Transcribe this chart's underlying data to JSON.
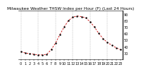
{
  "title": "Milwaukee Weather THSW Index per Hour (F) (Last 24 Hours)",
  "hours": [
    0,
    1,
    2,
    3,
    4,
    5,
    6,
    7,
    8,
    9,
    10,
    11,
    12,
    13,
    14,
    15,
    16,
    17,
    18,
    19,
    20,
    21,
    22,
    23
  ],
  "values": [
    32,
    30,
    29,
    28,
    27,
    27,
    28,
    35,
    45,
    58,
    70,
    80,
    85,
    87,
    86,
    84,
    78,
    70,
    60,
    52,
    46,
    42,
    38,
    35
  ],
  "line_color": "#cc0000",
  "dot_color": "#000000",
  "bg_color": "#ffffff",
  "grid_color": "#888888",
  "ylim": [
    20,
    95
  ],
  "ytick_values": [
    25,
    30,
    35,
    40,
    45,
    50,
    55,
    60,
    65,
    70,
    75,
    80,
    85,
    90
  ],
  "ytick_labels": [
    "",
    "30",
    "",
    "40",
    "",
    "50",
    "",
    "60",
    "",
    "70",
    "",
    "80",
    "",
    "90"
  ],
  "vgrid_positions": [
    0,
    4,
    8,
    12,
    16,
    20
  ],
  "title_fontsize": 4.2,
  "axis_fontsize": 3.5,
  "line_width": 0.6,
  "dot_size": 1.5
}
